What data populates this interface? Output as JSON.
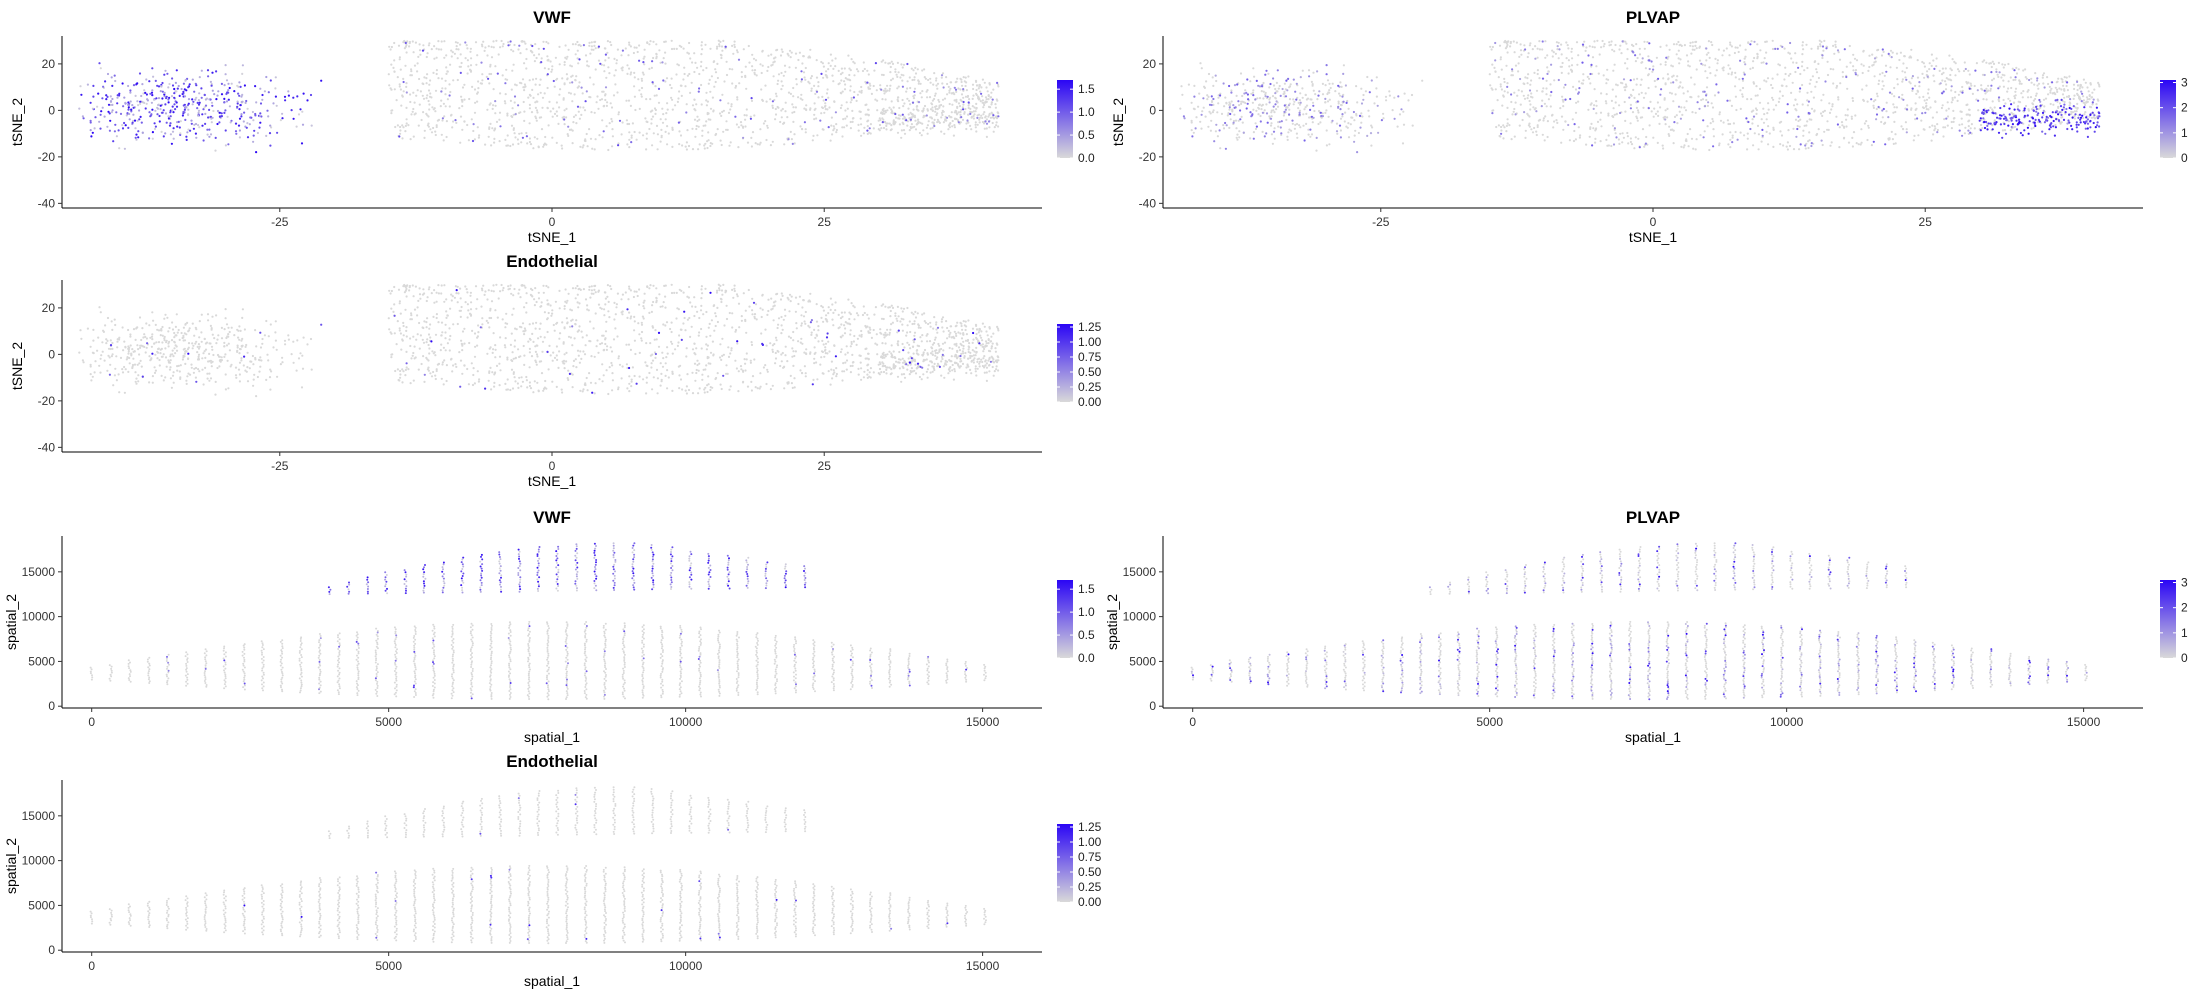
{
  "colors": {
    "low": "#d9d9d9",
    "high": "#2b06f5",
    "axis": "#000000",
    "text": "#000000"
  },
  "chart_data": [
    {
      "type": "scatter",
      "coords": "tsne",
      "title": "VWF",
      "xlabel": "tSNE_1",
      "ylabel": "tSNE_2",
      "xlim": [
        -45,
        45
      ],
      "ylim": [
        -42,
        32
      ],
      "xticks": [
        "-25",
        "0",
        "25"
      ],
      "yticks": [
        "20",
        "0",
        "-20",
        "-40"
      ],
      "legend": {
        "position": "right",
        "labels": [
          "1.5",
          "1.0",
          "0.5",
          "0.0"
        ],
        "max": 1.7
      },
      "highlight": "left-cluster"
    },
    {
      "type": "scatter",
      "coords": "tsne",
      "title": "PLVAP",
      "xlabel": "tSNE_1",
      "ylabel": "tSNE_2",
      "xlim": [
        -45,
        45
      ],
      "ylim": [
        -42,
        32
      ],
      "xticks": [
        "-25",
        "0",
        "25"
      ],
      "yticks": [
        "20",
        "0",
        "-20",
        "-40"
      ],
      "legend": {
        "position": "right",
        "labels": [
          "3",
          "2",
          "1",
          "0"
        ],
        "max": 3.1
      },
      "highlight": "right-tip"
    },
    {
      "type": "scatter",
      "coords": "tsne",
      "title": "Endothelial",
      "xlabel": "tSNE_1",
      "ylabel": "tSNE_2",
      "xlim": [
        -45,
        45
      ],
      "ylim": [
        -42,
        32
      ],
      "xticks": [
        "-25",
        "0",
        "25"
      ],
      "yticks": [
        "20",
        "0",
        "-20",
        "-40"
      ],
      "legend": {
        "position": "right",
        "labels": [
          "1.25",
          "1.00",
          "0.75",
          "0.50",
          "0.25",
          "0.00"
        ],
        "max": 1.3
      },
      "highlight": "sparse"
    },
    {
      "type": "scatter",
      "coords": "spatial",
      "title": "VWF",
      "xlabel": "spatial_1",
      "ylabel": "spatial_2",
      "xlim": [
        -500,
        16000
      ],
      "ylim": [
        -200,
        19000
      ],
      "xticks": [
        "0",
        "5000",
        "10000",
        "15000"
      ],
      "yticks": [
        "15000",
        "10000",
        "5000",
        "0"
      ],
      "legend": {
        "position": "right",
        "labels": [
          "1.5",
          "1.0",
          "0.5",
          "0.0"
        ],
        "max": 1.7
      },
      "highlight": "upper-band"
    },
    {
      "type": "scatter",
      "coords": "spatial",
      "title": "PLVAP",
      "xlabel": "spatial_1",
      "ylabel": "spatial_2",
      "xlim": [
        -500,
        16000
      ],
      "ylim": [
        -200,
        19000
      ],
      "xticks": [
        "0",
        "5000",
        "10000",
        "15000"
      ],
      "yticks": [
        "15000",
        "10000",
        "5000",
        "0"
      ],
      "legend": {
        "position": "right",
        "labels": [
          "3",
          "2",
          "1",
          "0"
        ],
        "max": 3.1
      },
      "highlight": "scattered"
    },
    {
      "type": "scatter",
      "coords": "spatial",
      "title": "Endothelial",
      "xlabel": "spatial_1",
      "ylabel": "spatial_2",
      "xlim": [
        -500,
        16000
      ],
      "ylim": [
        -200,
        19000
      ],
      "xticks": [
        "0",
        "5000",
        "10000",
        "15000"
      ],
      "yticks": [
        "15000",
        "10000",
        "5000",
        "0"
      ],
      "legend": {
        "position": "right",
        "labels": [
          "1.25",
          "1.00",
          "0.75",
          "0.50",
          "0.25",
          "0.00"
        ],
        "max": 1.3
      },
      "highlight": "sparse"
    }
  ]
}
